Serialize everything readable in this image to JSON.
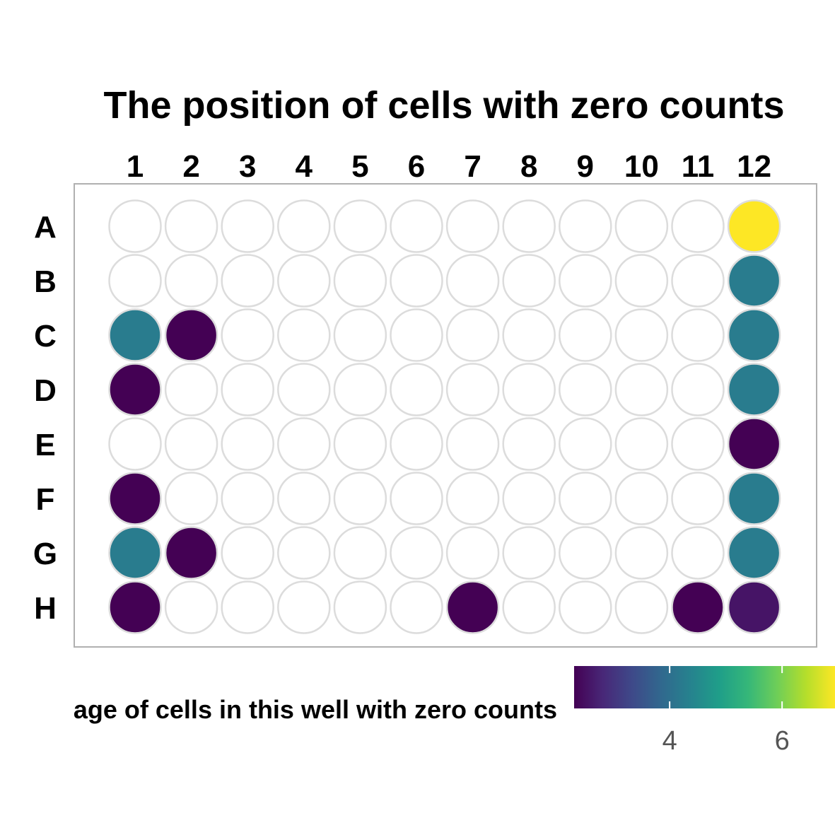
{
  "chart_data": {
    "type": "heatmap",
    "title": "The position of cells with zero counts",
    "columns": [
      "1",
      "2",
      "3",
      "4",
      "5",
      "6",
      "7",
      "8",
      "9",
      "10",
      "11",
      "12"
    ],
    "rows": [
      "A",
      "B",
      "C",
      "D",
      "E",
      "F",
      "G",
      "H"
    ],
    "wells": [
      {
        "row": "A",
        "col": "12",
        "value": 7.8
      },
      {
        "row": "B",
        "col": "12",
        "value": 4.6
      },
      {
        "row": "C",
        "col": "1",
        "value": 4.6
      },
      {
        "row": "C",
        "col": "2",
        "value": 2.3
      },
      {
        "row": "C",
        "col": "12",
        "value": 4.6
      },
      {
        "row": "D",
        "col": "1",
        "value": 2.3
      },
      {
        "row": "D",
        "col": "12",
        "value": 4.6
      },
      {
        "row": "E",
        "col": "12",
        "value": 2.3
      },
      {
        "row": "F",
        "col": "1",
        "value": 2.3
      },
      {
        "row": "F",
        "col": "12",
        "value": 4.6
      },
      {
        "row": "G",
        "col": "1",
        "value": 4.6
      },
      {
        "row": "G",
        "col": "2",
        "value": 2.3
      },
      {
        "row": "G",
        "col": "12",
        "value": 4.6
      },
      {
        "row": "H",
        "col": "1",
        "value": 2.3
      },
      {
        "row": "H",
        "col": "7",
        "value": 2.3
      },
      {
        "row": "H",
        "col": "11",
        "value": 2.3
      },
      {
        "row": "H",
        "col": "12",
        "value": 2.6
      }
    ],
    "legend": {
      "title": "Percentage of cells in this well with zero counts",
      "visible_title": "age of cells in this well with zero counts",
      "range": [
        2.3,
        7.8
      ],
      "ticks": [
        4,
        6
      ],
      "tick_labels": [
        "4",
        "6"
      ],
      "position": "bottom",
      "palette": "viridis"
    },
    "empty_well_color": "#ffffff",
    "well_outline_color": "#dcdcdc",
    "panel_border_color": "#b0b0b0"
  }
}
